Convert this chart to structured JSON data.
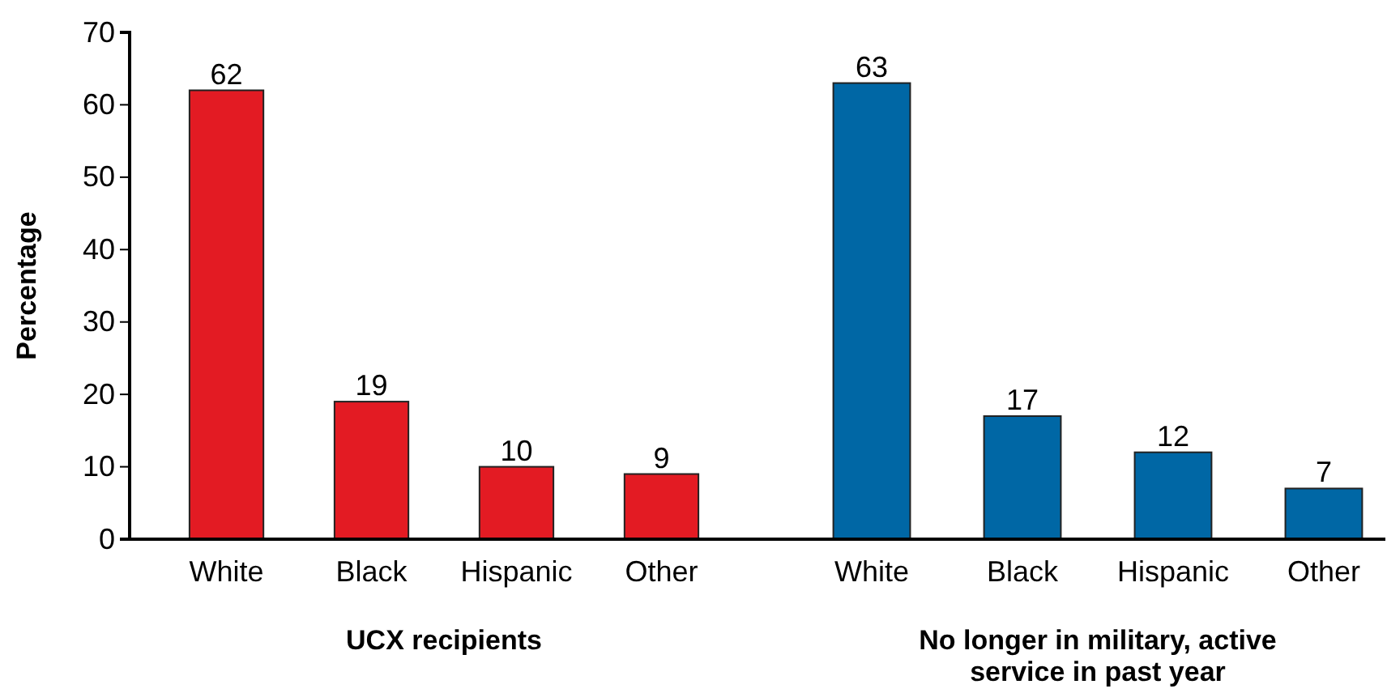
{
  "chart_data": [
    {
      "type": "bar",
      "categories": [
        "White",
        "Black",
        "Hispanic",
        "Other"
      ],
      "values": [
        62,
        19,
        10,
        9
      ],
      "color": "#e31b23",
      "ylim": [
        0,
        70
      ],
      "yticks": [
        0,
        10,
        20,
        30,
        40,
        50,
        60,
        70
      ],
      "ylabel": "Percentage",
      "xlabel": "UCX recipients",
      "data_labels": true
    },
    {
      "type": "bar",
      "categories": [
        "White",
        "Black",
        "Hispanic",
        "Other"
      ],
      "values": [
        63,
        17,
        12,
        7
      ],
      "color": "#0067a5",
      "ylim": [
        0,
        70
      ],
      "xlabel": "No longer in military, active service in past year",
      "tick_labels": "x",
      "data_labels": true
    }
  ]
}
